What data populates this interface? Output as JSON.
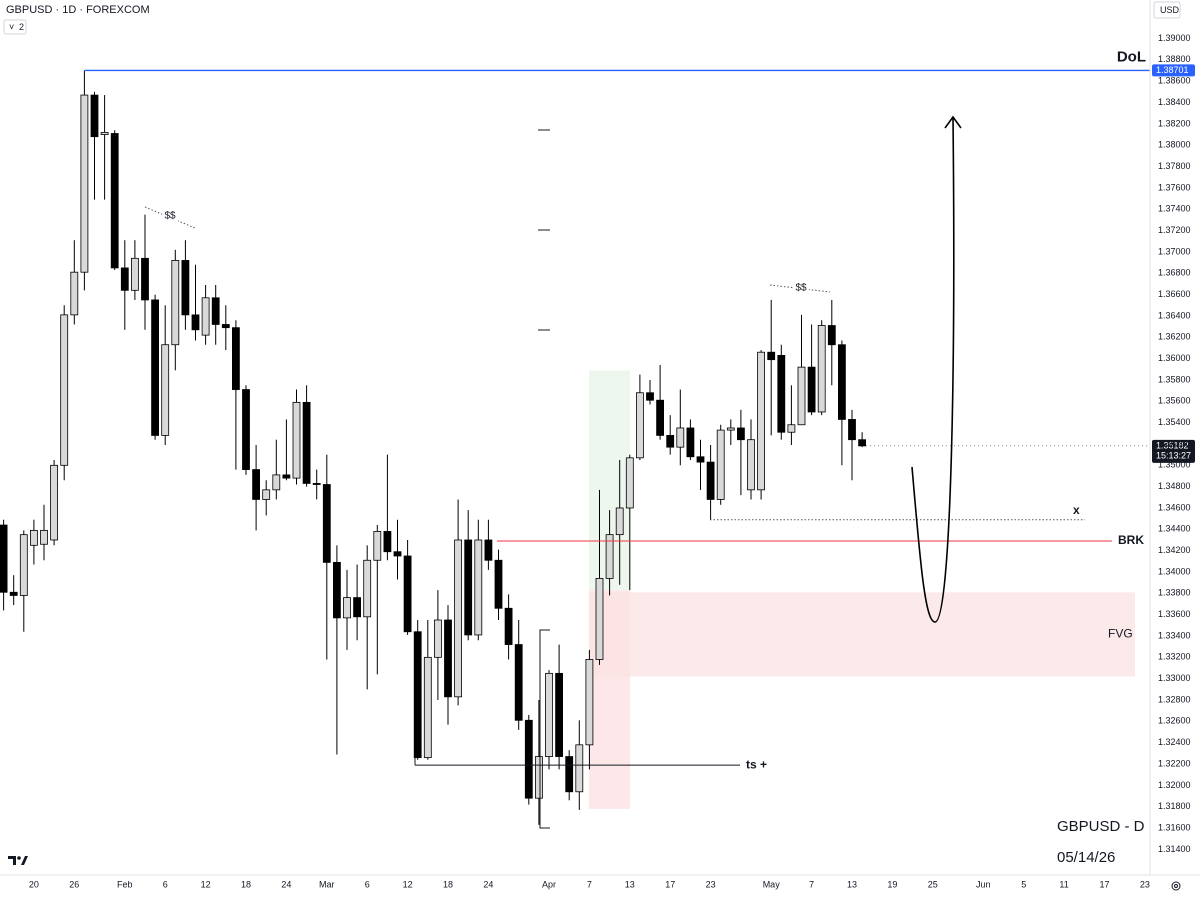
{
  "header": {
    "symbol": "GBPUSD · 1D · FOREXCOM",
    "indicator_count": "2",
    "currency": "USD"
  },
  "footer": {
    "pair": "GBPUSD - D",
    "date": "05/14/26"
  },
  "chart_data": {
    "type": "candlestick",
    "up_color": "#d9d9d9",
    "down_color": "#000000",
    "grid": false,
    "categories": [
      null,
      null,
      null,
      "20",
      null,
      null,
      null,
      "26",
      null,
      null,
      null,
      null,
      "Feb",
      null,
      null,
      null,
      "6",
      null,
      null,
      null,
      "12",
      null,
      null,
      null,
      "18",
      null,
      null,
      null,
      "24",
      null,
      null,
      null,
      "Mar",
      null,
      null,
      null,
      "6",
      null,
      null,
      null,
      "12",
      null,
      null,
      null,
      "18",
      null,
      null,
      null,
      "24",
      null,
      null,
      null,
      null,
      null,
      "Apr",
      null,
      null,
      null,
      "7",
      null,
      null,
      null,
      "13",
      null,
      null,
      null,
      "17",
      null,
      null,
      null,
      "23",
      null,
      null,
      null,
      null,
      null,
      "May",
      null,
      null,
      null,
      "7",
      null,
      null,
      null,
      "13",
      null,
      null,
      null,
      "19",
      null,
      null,
      null,
      "25",
      null,
      null,
      null,
      null,
      "Jun",
      null,
      null,
      null,
      "5",
      null,
      null,
      null,
      "11",
      null,
      null,
      null,
      "17",
      null,
      null,
      null,
      "23"
    ],
    "open": [
      1.3444,
      1.3381,
      1.3378,
      1.3425,
      1.3426,
      1.343,
      1.35,
      1.3641,
      1.3681,
      1.3847,
      1.381,
      1.3811,
      1.3685,
      1.3664,
      1.3694,
      1.3655,
      1.3528,
      1.3613,
      1.3692,
      1.3641,
      1.3622,
      1.3657,
      1.3632,
      1.3629,
      1.3571,
      1.3496,
      1.3468,
      1.3477,
      1.3491,
      1.3488,
      1.3559,
      1.3483,
      1.3482,
      1.3409,
      1.3357,
      1.3376,
      1.3358,
      1.3411,
      1.3438,
      1.3419,
      1.3415,
      1.3344,
      1.3226,
      1.332,
      1.3355,
      1.3283,
      1.343,
      1.3341,
      1.343,
      1.3411,
      1.3366,
      1.3332,
      1.3261,
      1.3188,
      1.3227,
      1.3305,
      1.3227,
      1.3194,
      1.3238,
      1.3318,
      1.3394,
      1.3435,
      1.346,
      1.3507,
      1.3568,
      1.3561,
      1.3528,
      1.3517,
      1.3535,
      1.3508,
      1.3503,
      1.3468,
      1.3533,
      1.3535,
      1.3477,
      1.3477,
      1.3606,
      1.3603,
      1.3531,
      1.3538,
      1.3592,
      1.355,
      1.3631,
      1.3613,
      1.3543,
      1.3524,
      null,
      null,
      null,
      null,
      null,
      null,
      null,
      null,
      null,
      null,
      null,
      null,
      null,
      null,
      null,
      null,
      null,
      null,
      null,
      null,
      null,
      null,
      null,
      null,
      null,
      null,
      null,
      null
    ],
    "high": [
      1.3449,
      1.3397,
      1.3439,
      1.3449,
      1.3463,
      1.3505,
      1.365,
      1.3711,
      1.387,
      1.385,
      1.3847,
      1.3814,
      1.3711,
      1.3711,
      1.3735,
      1.366,
      1.365,
      1.3702,
      1.3711,
      1.3688,
      1.3669,
      1.3669,
      1.365,
      1.3636,
      1.3575,
      1.3519,
      1.3486,
      1.3524,
      1.3543,
      1.3571,
      1.3575,
      1.3496,
      1.351,
      1.3425,
      1.3402,
      1.3407,
      1.3425,
      1.3444,
      1.351,
      1.3449,
      1.343,
      1.3355,
      1.3355,
      1.3383,
      1.3369,
      1.3468,
      1.3458,
      1.3449,
      1.3449,
      1.3421,
      1.3379,
      1.3355,
      1.3266,
      1.328,
      1.3308,
      1.3332,
      1.3233,
      1.3261,
      1.3327,
      1.3477,
      1.3458,
      1.3505,
      1.351,
      1.3585,
      1.358,
      1.3594,
      1.3547,
      1.3571,
      1.3543,
      1.3524,
      1.3519,
      1.3538,
      1.3543,
      1.3552,
      1.3543,
      1.3608,
      1.3655,
      1.3613,
      1.3575,
      1.3641,
      1.3632,
      1.3636,
      1.3655,
      1.3617,
      1.3552,
      1.3531,
      null,
      null,
      null,
      null,
      null,
      null,
      null,
      null,
      null,
      null,
      null,
      null,
      null,
      null,
      null,
      null,
      null,
      null,
      null,
      null,
      null,
      null,
      null,
      null,
      null,
      null,
      null,
      null
    ],
    "low": [
      1.3364,
      1.3369,
      1.3344,
      1.3407,
      1.3411,
      1.3425,
      1.3486,
      1.3632,
      1.3664,
      1.3749,
      1.3749,
      1.3683,
      1.3627,
      1.3655,
      1.3627,
      1.3524,
      1.3519,
      1.3589,
      1.3627,
      1.3617,
      1.3613,
      1.3613,
      1.3608,
      1.3496,
      1.3491,
      1.3439,
      1.3453,
      1.3468,
      1.3486,
      1.3482,
      1.348,
      1.3468,
      1.3318,
      1.3229,
      1.3327,
      1.3336,
      1.329,
      1.3304,
      1.3411,
      1.3393,
      1.3341,
      1.3224,
      1.3224,
      1.328,
      1.3257,
      1.3275,
      1.3336,
      1.3336,
      1.3402,
      1.3355,
      1.3318,
      1.3252,
      1.3182,
      1.3163,
      1.3215,
      1.3215,
      1.3186,
      1.3177,
      1.3215,
      1.3313,
      1.3378,
      1.3388,
      1.3383,
      1.3505,
      1.3557,
      1.3524,
      1.351,
      1.35,
      1.3505,
      1.3477,
      1.3449,
      1.3463,
      1.3519,
      1.3472,
      1.3468,
      1.3468,
      1.3528,
      1.3524,
      1.3519,
      1.3538,
      1.3547,
      1.3547,
      1.3575,
      1.35,
      1.3486,
      1.3517,
      null,
      null,
      null,
      null,
      null,
      null,
      null,
      null,
      null,
      null,
      null,
      null,
      null,
      null,
      null,
      null,
      null,
      null,
      null,
      null,
      null,
      null,
      null,
      null,
      null,
      null,
      null,
      null
    ],
    "close": [
      1.3381,
      1.3378,
      1.3435,
      1.3439,
      1.3439,
      1.35,
      1.3641,
      1.3681,
      1.3847,
      1.3808,
      1.3812,
      1.3685,
      1.3664,
      1.3694,
      1.3655,
      1.3528,
      1.3613,
      1.3692,
      1.3641,
      1.3627,
      1.3657,
      1.3632,
      1.3629,
      1.3571,
      1.3496,
      1.3468,
      1.3477,
      1.3491,
      1.3488,
      1.3559,
      1.3483,
      1.3482,
      1.3409,
      1.3357,
      1.3376,
      1.3358,
      1.3411,
      1.3438,
      1.3419,
      1.3415,
      1.3344,
      1.3226,
      1.332,
      1.3355,
      1.3283,
      1.343,
      1.3341,
      1.343,
      1.3411,
      1.3366,
      1.3332,
      1.3261,
      1.3188,
      1.3227,
      1.3305,
      1.3227,
      1.3194,
      1.3238,
      1.3318,
      1.3394,
      1.3435,
      1.346,
      1.3507,
      1.3568,
      1.3561,
      1.3528,
      1.3517,
      1.3535,
      1.3508,
      1.3503,
      1.3468,
      1.3533,
      1.3535,
      1.3524,
      1.3524,
      1.3606,
      1.3599,
      1.3531,
      1.3538,
      1.3592,
      1.355,
      1.3631,
      1.3613,
      1.3543,
      1.3524,
      1.35182,
      null,
      null,
      null,
      null,
      null,
      null,
      null,
      null,
      null,
      null,
      null,
      null,
      null,
      null,
      null,
      null,
      null,
      null,
      null,
      null,
      null,
      null,
      null,
      null,
      null,
      null,
      null,
      null
    ],
    "countdown": "15:13:27",
    "ylim": [
      1.3116,
      1.3908
    ],
    "yticks": [
      {
        "value": 1.314,
        "label": "1.31400"
      },
      {
        "value": 1.316,
        "label": "1.31600"
      },
      {
        "value": 1.318,
        "label": "1.31800"
      },
      {
        "value": 1.32,
        "label": "1.32000"
      },
      {
        "value": 1.322,
        "label": "1.32200"
      },
      {
        "value": 1.324,
        "label": "1.32400"
      },
      {
        "value": 1.326,
        "label": "1.32600"
      },
      {
        "value": 1.328,
        "label": "1.32800"
      },
      {
        "value": 1.33,
        "label": "1.33000"
      },
      {
        "value": 1.332,
        "label": "1.33200"
      },
      {
        "value": 1.334,
        "label": "1.33400"
      },
      {
        "value": 1.336,
        "label": "1.33600"
      },
      {
        "value": 1.338,
        "label": "1.33800"
      },
      {
        "value": 1.34,
        "label": "1.34000"
      },
      {
        "value": 1.342,
        "label": "1.34200"
      },
      {
        "value": 1.344,
        "label": "1.34400"
      },
      {
        "value": 1.346,
        "label": "1.34600"
      },
      {
        "value": 1.348,
        "label": "1.34800"
      },
      {
        "value": 1.35,
        "label": "1.35000"
      },
      {
        "value": 1.352,
        "label": "1.35200"
      },
      {
        "value": 1.354,
        "label": "1.35400"
      },
      {
        "value": 1.356,
        "label": "1.35600"
      },
      {
        "value": 1.358,
        "label": "1.35800"
      },
      {
        "value": 1.36,
        "label": "1.36000"
      },
      {
        "value": 1.362,
        "label": "1.36200"
      },
      {
        "value": 1.364,
        "label": "1.36400"
      },
      {
        "value": 1.366,
        "label": "1.36600"
      },
      {
        "value": 1.368,
        "label": "1.36800"
      },
      {
        "value": 1.37,
        "label": "1.37000"
      },
      {
        "value": 1.372,
        "label": "1.37200"
      },
      {
        "value": 1.374,
        "label": "1.37400"
      },
      {
        "value": 1.376,
        "label": "1.37600"
      },
      {
        "value": 1.378,
        "label": "1.37800"
      },
      {
        "value": 1.38,
        "label": "1.38000"
      },
      {
        "value": 1.382,
        "label": "1.38200"
      },
      {
        "value": 1.384,
        "label": "1.38400"
      },
      {
        "value": 1.386,
        "label": "1.38600"
      },
      {
        "value": 1.388,
        "label": "1.38800"
      },
      {
        "value": 1.39,
        "label": "1.39000"
      }
    ],
    "annotations": {
      "dol": {
        "label": "DoL",
        "value": 1.38701,
        "color": "#2962ff"
      },
      "brk": {
        "label": "BRK",
        "value": 1.3429,
        "color": "#f23645"
      },
      "sweep": {
        "label": "x",
        "value": 1.3449
      },
      "fvg": {
        "label": "FVG",
        "top": 1.3381,
        "bottom": 1.3302,
        "color": "#fbe3e4"
      },
      "ts": {
        "label": "ts +",
        "value": 1.3219
      },
      "zone": {
        "top": 1.3589,
        "mid": 1.3383,
        "bottom": 1.3178
      },
      "liquidity": [
        "$$",
        "$$"
      ]
    }
  }
}
